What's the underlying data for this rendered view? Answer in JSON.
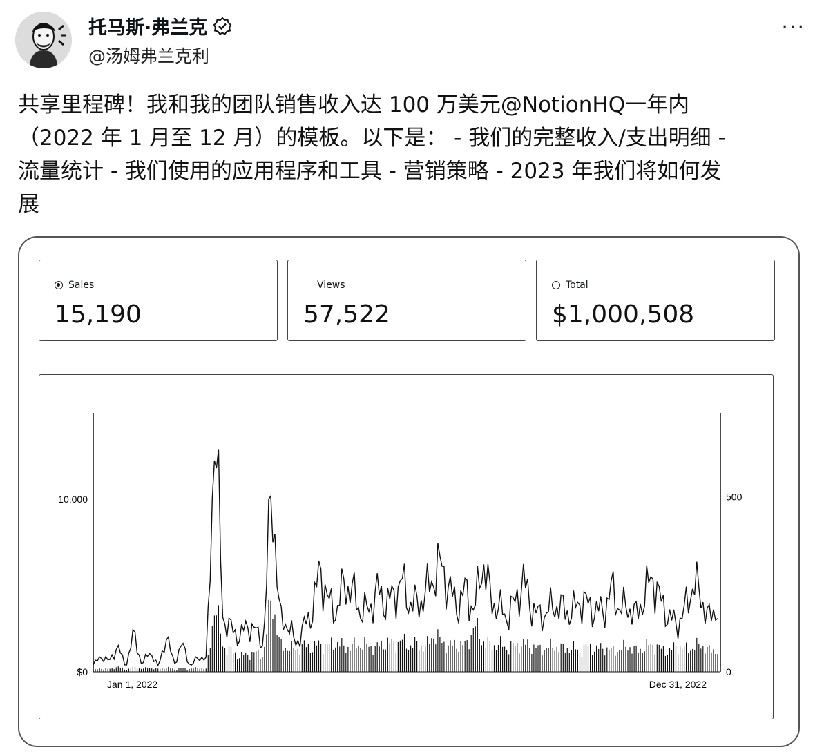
{
  "author": {
    "display_name": "托马斯·弗兰克",
    "handle": "@汤姆弗兰克利",
    "verified": true,
    "more_label": "···"
  },
  "tweet": {
    "lines": [
      "共享里程碑！我和我的团队销售收入达 100 万美元@NotionHQ一年内",
      "（2022 年 1 月至 12 月）的模板。以下是：  - 我们的完整收入/支出明细 -",
      "流量统计 - 我们使用的应用程序和工具 - 营销策略 - 2023 年我们将如何发",
      "展"
    ]
  },
  "stats": [
    {
      "label": "Sales",
      "value": "15,190",
      "marker": "filled"
    },
    {
      "label": "Views",
      "value": "57,522",
      "marker": "none"
    },
    {
      "label": "Total",
      "value": "$1,000,508",
      "marker": "open"
    }
  ],
  "chart_data": {
    "type": "line",
    "left_axis": {
      "ticks": [
        "$0",
        "10,000"
      ],
      "ylim": [
        0,
        15000
      ]
    },
    "right_axis": {
      "ticks": [
        "0",
        "500"
      ],
      "ylim": [
        0,
        740
      ]
    },
    "x_ticks": [
      "Jan 1, 2022",
      "Dec 31, 2022"
    ],
    "grid": false,
    "series": [
      {
        "style": "line",
        "axis": "left",
        "color": "#111111",
        "samples": [
          400,
          900,
          600,
          1500,
          300,
          2200,
          400,
          1200,
          300,
          2000,
          500,
          1600,
          300,
          900,
          700,
          15000,
          3000,
          2500,
          2000,
          2700,
          2400,
          1600,
          11200,
          3000,
          2800,
          1600,
          2600,
          3500,
          6000,
          4000,
          3500,
          5200,
          4600,
          3500,
          3600,
          4700,
          4000,
          4300,
          5300,
          4000,
          3900,
          4500,
          5600,
          6200,
          4600,
          3800,
          4800,
          3400,
          6600,
          4200,
          3700,
          3200,
          4000,
          5300,
          3800,
          3200,
          3500,
          3900,
          3600,
          3400,
          4100,
          3900,
          3500,
          3600,
          4800,
          3600,
          3800,
          3200,
          4500,
          5500,
          4000,
          3200,
          2700,
          3600,
          5200,
          4300,
          3000,
          3900
        ]
      },
      {
        "style": "bars",
        "axis": "left",
        "color": "#111111",
        "samples": [
          100,
          200,
          150,
          300,
          120,
          250,
          180,
          220,
          160,
          260,
          140,
          200,
          170,
          240,
          150,
          4000,
          1500,
          1200,
          900,
          1000,
          1100,
          950,
          4500,
          1500,
          1400,
          1300,
          1500,
          1400,
          1600,
          1500,
          1700,
          1400,
          1500,
          1600,
          1500,
          1400,
          1700,
          1600,
          1800,
          1500,
          1600,
          1400,
          2200,
          1700,
          1500,
          1600,
          1500,
          2700,
          1800,
          1500,
          1600,
          1400,
          1500,
          1600,
          1500,
          1300,
          1400,
          1500,
          1300,
          1400,
          1200,
          1500,
          1300,
          1400,
          1200,
          1300,
          1500,
          1200,
          1400,
          1600,
          1300,
          1200,
          1500,
          1300,
          1400,
          1600,
          1200,
          1300
        ]
      }
    ]
  }
}
